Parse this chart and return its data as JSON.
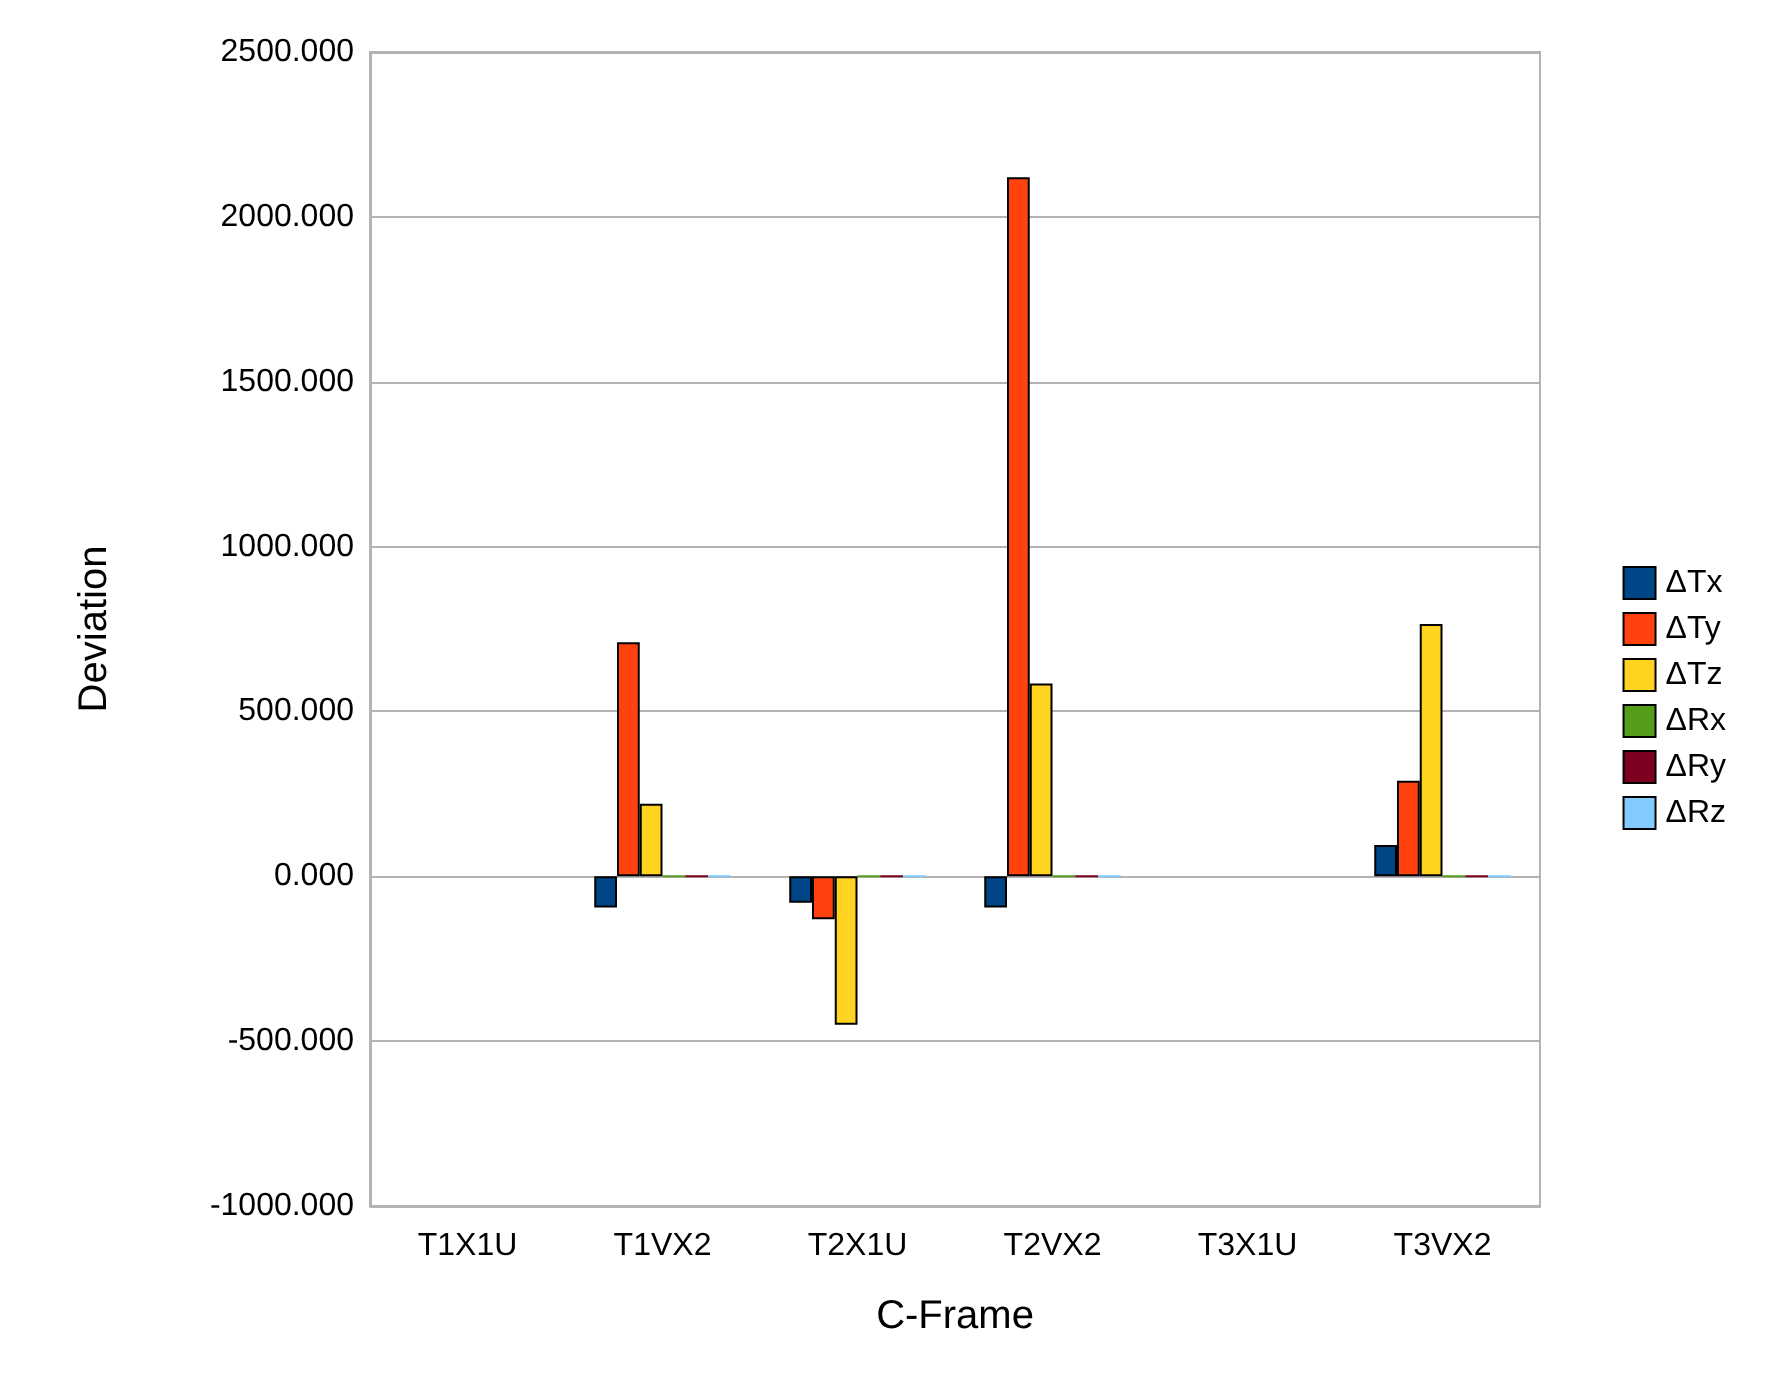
{
  "chart_data": {
    "type": "bar",
    "xlabel": "C-Frame",
    "ylabel": "Deviation",
    "categories": [
      "T1X1U",
      "T1VX2",
      "T2X1U",
      "T2VX2",
      "T3X1U",
      "T3VX2"
    ],
    "series": [
      {
        "name": "ΔTx",
        "color": "#004586",
        "values": [
          null,
          -95,
          -80,
          -95,
          null,
          95
        ]
      },
      {
        "name": "ΔTy",
        "color": "#ff420e",
        "values": [
          null,
          710,
          -130,
          2120,
          null,
          290
        ]
      },
      {
        "name": "ΔTz",
        "color": "#ffd320",
        "values": [
          null,
          220,
          -450,
          585,
          null,
          765
        ]
      },
      {
        "name": "ΔRx",
        "color": "#579d1c",
        "values": [
          null,
          0,
          0,
          0,
          null,
          0
        ]
      },
      {
        "name": "ΔRy",
        "color": "#7e0021",
        "values": [
          null,
          0,
          0,
          0,
          null,
          0
        ]
      },
      {
        "name": "ΔRz",
        "color": "#83caff",
        "values": [
          null,
          0,
          0,
          0,
          null,
          0
        ]
      }
    ],
    "ylim": [
      -1000,
      2500
    ],
    "yticks": [
      {
        "value": -1000,
        "label": "-1000.000"
      },
      {
        "value": -500,
        "label": "-500.000"
      },
      {
        "value": 0,
        "label": "0.000"
      },
      {
        "value": 500,
        "label": "500.000"
      },
      {
        "value": 1000,
        "label": "1000.000"
      },
      {
        "value": 1500,
        "label": "1500.000"
      },
      {
        "value": 2000,
        "label": "2000.000"
      },
      {
        "value": 2500,
        "label": "2500.000"
      }
    ],
    "grid": "y",
    "legend": "right"
  }
}
